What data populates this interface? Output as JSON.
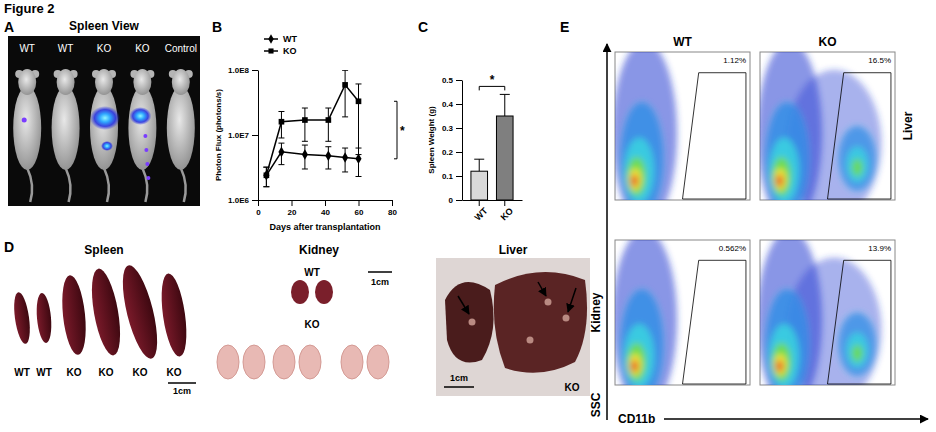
{
  "figure_title": "Figure 2",
  "panel_letters": [
    "A",
    "B",
    "C",
    "D",
    "E"
  ],
  "panel_a": {
    "title": "Spleen View",
    "mouse_labels": [
      "WT",
      "WT",
      "KO",
      "KO",
      "Control"
    ]
  },
  "panel_d": {
    "spleen": {
      "title": "Spleen",
      "labels": [
        "WT",
        "WT",
        "KO",
        "KO",
        "KO",
        "KO"
      ],
      "scale_bar": "1cm"
    },
    "kidney": {
      "title": "Kidney",
      "labels": [
        "WT",
        "KO"
      ],
      "scale_bar": "1cm"
    },
    "liver": {
      "title": "Liver",
      "label": "KO",
      "scale_bar": "1cm"
    }
  },
  "panel_e": {
    "columns": [
      "WT",
      "KO"
    ],
    "rows": [
      "Liver",
      "Kidney"
    ],
    "x_label": "CD11b",
    "y_label": "SSC",
    "gates": [
      [
        "1.12%",
        "16.5%"
      ],
      [
        "0.562%",
        "13.9%"
      ]
    ]
  },
  "chart_data": [
    {
      "type": "line",
      "x_label": "Days after transplantation",
      "y_label": "Photon Flux (photons/s)",
      "x": [
        5,
        14,
        28,
        42,
        52,
        60
      ],
      "series": [
        {
          "name": "WT",
          "color": "#000000",
          "marker": "diamond",
          "values": [
            2400000,
            5500000,
            5000000,
            4800000,
            4500000,
            4300000
          ],
          "errors": [
            800000,
            2000000,
            2000000,
            1800000,
            1800000,
            2000000
          ]
        },
        {
          "name": "KO",
          "color": "#000000",
          "marker": "square",
          "values": [
            2400000,
            16000000,
            17000000,
            17000000,
            59000000,
            33000000
          ],
          "errors": [
            800000,
            7000000,
            9000000,
            9000000,
            40000000,
            28000000
          ]
        }
      ],
      "xlim": [
        0,
        80
      ],
      "xticks": [
        0,
        20,
        40,
        60,
        80
      ],
      "ylim": [
        1000000,
        100000000
      ],
      "yticks": [
        {
          "value": 1000000,
          "label": "1.0E6"
        },
        {
          "value": 10000000,
          "label": "1.0E7"
        },
        {
          "value": 100000000,
          "label": "1.0E8"
        }
      ],
      "log": "y",
      "legend": "top-left",
      "annotations": [
        "*"
      ]
    },
    {
      "type": "bar",
      "y_label": "Spleen Weight (g)",
      "categories": [
        "WT",
        "KO"
      ],
      "values": [
        0.12,
        0.35
      ],
      "errors": [
        0.05,
        0.09
      ],
      "colors": [
        "#d9d9d9",
        "#7f7f7f"
      ],
      "ylim": [
        0,
        0.5
      ],
      "yticks": [
        0,
        0.1,
        0.2,
        0.3,
        0.4,
        0.5
      ],
      "annotations": [
        "*"
      ]
    }
  ]
}
